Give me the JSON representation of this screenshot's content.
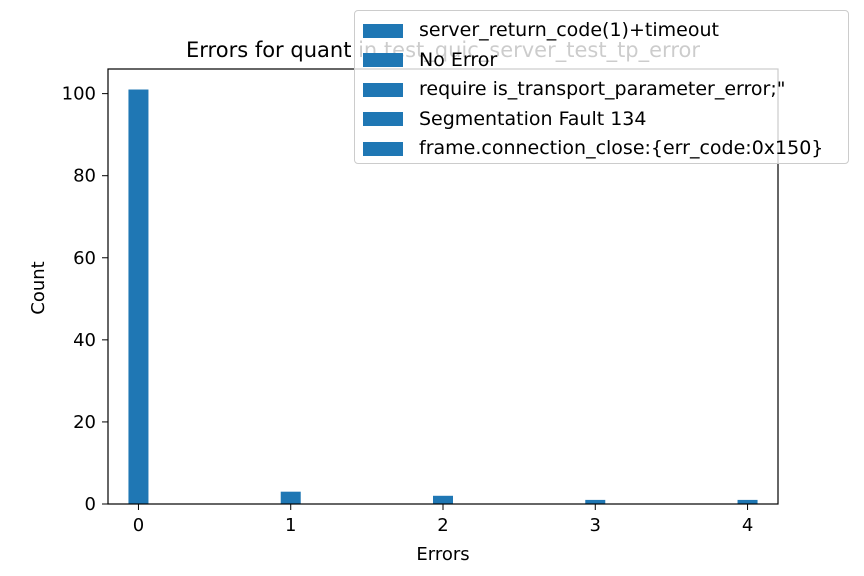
{
  "chart_data": {
    "type": "bar",
    "title": "Errors for quant in test_quic_server_test_tp_error",
    "xlabel": "Errors",
    "ylabel": "Count",
    "xlim": [
      -0.2,
      4.2
    ],
    "ylim": [
      0,
      106
    ],
    "grid": false,
    "legend_position": "top-right",
    "bar_color": "#1f77b4",
    "x_ticks": [
      "0",
      "1",
      "2",
      "3",
      "4"
    ],
    "y_ticks": [
      "0",
      "20",
      "40",
      "60",
      "80",
      "100"
    ],
    "categories": [
      "0",
      "1",
      "2",
      "3",
      "4"
    ],
    "values": [
      101,
      3,
      2,
      1,
      1
    ],
    "legend": [
      "server_return_code(1)+timeout",
      "No Error",
      "require is_transport_parameter_error;\"",
      "Segmentation Fault 134",
      "frame.connection_close:{err_code:0x150}"
    ]
  }
}
